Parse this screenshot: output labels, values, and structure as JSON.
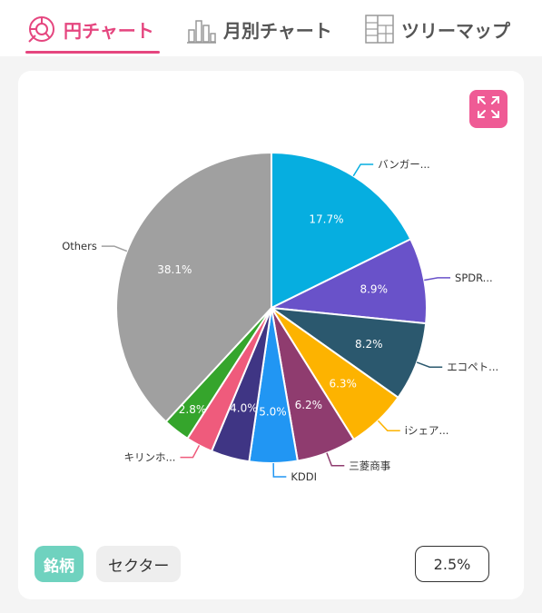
{
  "tabs": [
    {
      "label": "円チャート",
      "active": true,
      "icon": "pie-chart-icon"
    },
    {
      "label": "月別チャート",
      "active": false,
      "icon": "monthly-bar-chart-icon"
    },
    {
      "label": "ツリーマップ",
      "active": false,
      "icon": "treemap-icon"
    }
  ],
  "controls": {
    "expand_icon": "expand-icon",
    "toggle_stock": "銘柄",
    "toggle_sector": "セクター",
    "threshold": "2.5%"
  },
  "colors": {
    "accent": "#e5467f",
    "toggle_active": "#6fd2bf"
  },
  "chart_data": {
    "type": "pie",
    "slices": [
      {
        "name": "バンガー...",
        "value": 17.7,
        "label": "17.7%",
        "color": "#06aee0"
      },
      {
        "name": "SPDR...",
        "value": 8.9,
        "label": "8.9%",
        "color": "#6952c9"
      },
      {
        "name": "エコペト...",
        "value": 8.2,
        "label": "8.2%",
        "color": "#2b586e"
      },
      {
        "name": "iシェア...",
        "value": 6.3,
        "label": "6.3%",
        "color": "#fdb300"
      },
      {
        "name": "三菱商事",
        "value": 6.2,
        "label": "6.2%",
        "color": "#8f3c6f"
      },
      {
        "name": "KDDI",
        "value": 5.0,
        "label": "5.0%",
        "color": "#2196f3"
      },
      {
        "name": "",
        "value": 4.0,
        "label": "4.0%",
        "color": "#3f3584"
      },
      {
        "name": "キリンホ...",
        "value": 2.8,
        "label": "",
        "color": "#ef5b7c"
      },
      {
        "name": "",
        "value": 2.8,
        "label": "2.8%",
        "color": "#35a52c"
      },
      {
        "name": "Others",
        "value": 38.1,
        "label": "38.1%",
        "color": "#a0a0a0"
      }
    ]
  }
}
